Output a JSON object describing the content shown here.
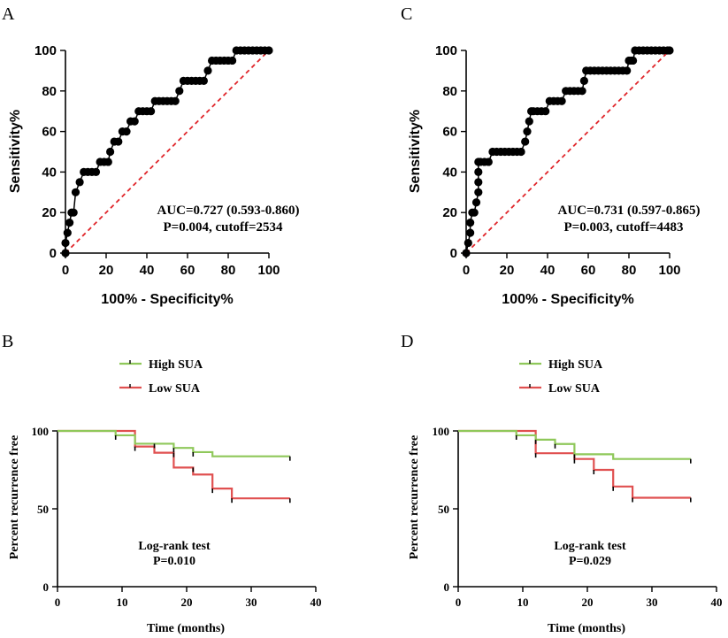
{
  "colors": {
    "roc_point": "#000000",
    "diagonal": "#e0262b",
    "high_sua": "#8fc85a",
    "low_sua": "#e05050",
    "axis": "#000000"
  },
  "chart_data": [
    {
      "panel_letter": "A",
      "type": "scatter",
      "title": "",
      "xlabel": "100% - Specificity%",
      "ylabel": "Sensitivity%",
      "xlim": [
        0,
        100
      ],
      "ylim": [
        0,
        100
      ],
      "xticks": [
        "0",
        "20",
        "40",
        "60",
        "80",
        "100"
      ],
      "yticks": [
        "0",
        "20",
        "40",
        "60",
        "80",
        "100"
      ],
      "annotation": [
        "AUC=0.727 (0.593-0.860)",
        "P=0.004, cutoff=2534"
      ],
      "reference_line": [
        [
          0,
          0
        ],
        [
          100,
          100
        ]
      ],
      "series": [
        {
          "name": "ROC",
          "x": [
            0,
            0,
            1,
            2,
            3,
            4,
            5,
            7,
            9,
            11,
            13,
            15,
            17,
            19,
            21,
            22,
            24,
            26,
            28,
            30,
            32,
            34,
            36,
            38,
            40,
            42,
            44,
            46,
            48,
            50,
            52,
            54,
            56,
            58,
            60,
            62,
            64,
            66,
            68,
            70,
            72,
            74,
            76,
            78,
            80,
            82,
            84,
            86,
            88,
            90,
            92,
            94,
            96,
            98,
            100
          ],
          "y": [
            0,
            5,
            10,
            15,
            20,
            20,
            30,
            35,
            40,
            40,
            40,
            40,
            45,
            45,
            45,
            50,
            55,
            55,
            60,
            60,
            65,
            65,
            70,
            70,
            70,
            70,
            75,
            75,
            75,
            75,
            75,
            75,
            80,
            85,
            85,
            85,
            85,
            85,
            85,
            90,
            95,
            95,
            95,
            95,
            95,
            95,
            100,
            100,
            100,
            100,
            100,
            100,
            100,
            100,
            100
          ]
        }
      ]
    },
    {
      "panel_letter": "C",
      "type": "scatter",
      "title": "",
      "xlabel": "100% - Specificity%",
      "ylabel": "Sensitivity%",
      "xlim": [
        0,
        100
      ],
      "ylim": [
        0,
        100
      ],
      "xticks": [
        "0",
        "20",
        "40",
        "60",
        "80",
        "100"
      ],
      "yticks": [
        "0",
        "20",
        "40",
        "60",
        "80",
        "100"
      ],
      "annotation": [
        "AUC=0.731 (0.597-0.865)",
        "P=0.003, cutoff=4483"
      ],
      "reference_line": [
        [
          0,
          0
        ],
        [
          100,
          100
        ]
      ],
      "series": [
        {
          "name": "ROC",
          "x": [
            0,
            1,
            2,
            2,
            3,
            4,
            5,
            6,
            6,
            6,
            6,
            7,
            9,
            11,
            13,
            15,
            17,
            19,
            21,
            23,
            25,
            27,
            29,
            30,
            31,
            32,
            33,
            35,
            37,
            39,
            41,
            43,
            45,
            47,
            49,
            51,
            53,
            55,
            57,
            58,
            59,
            61,
            63,
            65,
            67,
            69,
            71,
            73,
            75,
            77,
            79,
            80,
            81,
            82,
            83,
            85,
            87,
            89,
            91,
            93,
            95,
            97,
            99,
            100
          ],
          "y": [
            0,
            5,
            10,
            15,
            20,
            20,
            25,
            30,
            35,
            40,
            45,
            45,
            45,
            45,
            50,
            50,
            50,
            50,
            50,
            50,
            50,
            50,
            55,
            60,
            65,
            70,
            70,
            70,
            70,
            70,
            75,
            75,
            75,
            75,
            80,
            80,
            80,
            80,
            80,
            85,
            90,
            90,
            90,
            90,
            90,
            90,
            90,
            90,
            90,
            90,
            90,
            95,
            95,
            95,
            100,
            100,
            100,
            100,
            100,
            100,
            100,
            100,
            100,
            100
          ]
        }
      ]
    },
    {
      "panel_letter": "B",
      "type": "line",
      "title": "",
      "xlabel": "Time (months)",
      "ylabel": "Percent recurrence free",
      "xlim": [
        0,
        40
      ],
      "ylim": [
        0,
        100
      ],
      "xticks": [
        "0",
        "10",
        "20",
        "30",
        "40"
      ],
      "yticks": [
        "0",
        "50",
        "100"
      ],
      "legend": [
        "High SUA",
        "Low SUA"
      ],
      "legend_position": "top-left",
      "annotation": [
        "Log-rank test",
        "P=0.010"
      ],
      "series": [
        {
          "name": "High SUA",
          "step": true,
          "x": [
            0,
            9,
            12,
            18,
            21,
            24,
            36
          ],
          "y": [
            100,
            97.2,
            91.8,
            89.1,
            86.4,
            83.7,
            83.7
          ],
          "censor": [
            [
              9,
              97.2
            ],
            [
              15,
              91.8
            ],
            [
              18,
              89.1
            ],
            [
              21,
              86.4
            ],
            [
              36,
              83.7
            ]
          ]
        },
        {
          "name": "Low SUA",
          "step": true,
          "x": [
            0,
            12,
            15,
            18,
            21,
            24,
            27,
            36
          ],
          "y": [
            100,
            90,
            86,
            76.5,
            72,
            63,
            56.7,
            56.7
          ],
          "censor": [
            [
              12,
              90
            ],
            [
              18,
              86
            ],
            [
              21,
              76.5
            ],
            [
              24,
              63
            ],
            [
              27,
              56.7
            ],
            [
              36,
              56.7
            ]
          ]
        }
      ]
    },
    {
      "panel_letter": "D",
      "type": "line",
      "title": "",
      "xlabel": "Time (months)",
      "ylabel": "Percent recurrence free",
      "xlim": [
        0,
        40
      ],
      "ylim": [
        0,
        100
      ],
      "xticks": [
        "0",
        "10",
        "20",
        "30",
        "40"
      ],
      "yticks": [
        "0",
        "50",
        "100"
      ],
      "legend": [
        "High SUA",
        "Low SUA"
      ],
      "legend_position": "top-left",
      "annotation": [
        "Log-rank test",
        "P=0.029"
      ],
      "series": [
        {
          "name": "High SUA",
          "step": true,
          "x": [
            0,
            9,
            12,
            15,
            18,
            24,
            36
          ],
          "y": [
            100,
            97.2,
            94.4,
            91.6,
            85,
            82,
            82
          ],
          "censor": [
            [
              9,
              97.2
            ],
            [
              12,
              94.4
            ],
            [
              15,
              91.6
            ],
            [
              18,
              85
            ],
            [
              36,
              82
            ]
          ]
        },
        {
          "name": "Low SUA",
          "step": true,
          "x": [
            0,
            12,
            18,
            21,
            24,
            27,
            36
          ],
          "y": [
            100,
            85.7,
            82,
            75,
            64.3,
            57.1,
            57.1
          ],
          "censor": [
            [
              12,
              85.7
            ],
            [
              18,
              82
            ],
            [
              21,
              75
            ],
            [
              24,
              64.3
            ],
            [
              27,
              57.1
            ],
            [
              36,
              57.1
            ]
          ]
        }
      ]
    }
  ]
}
